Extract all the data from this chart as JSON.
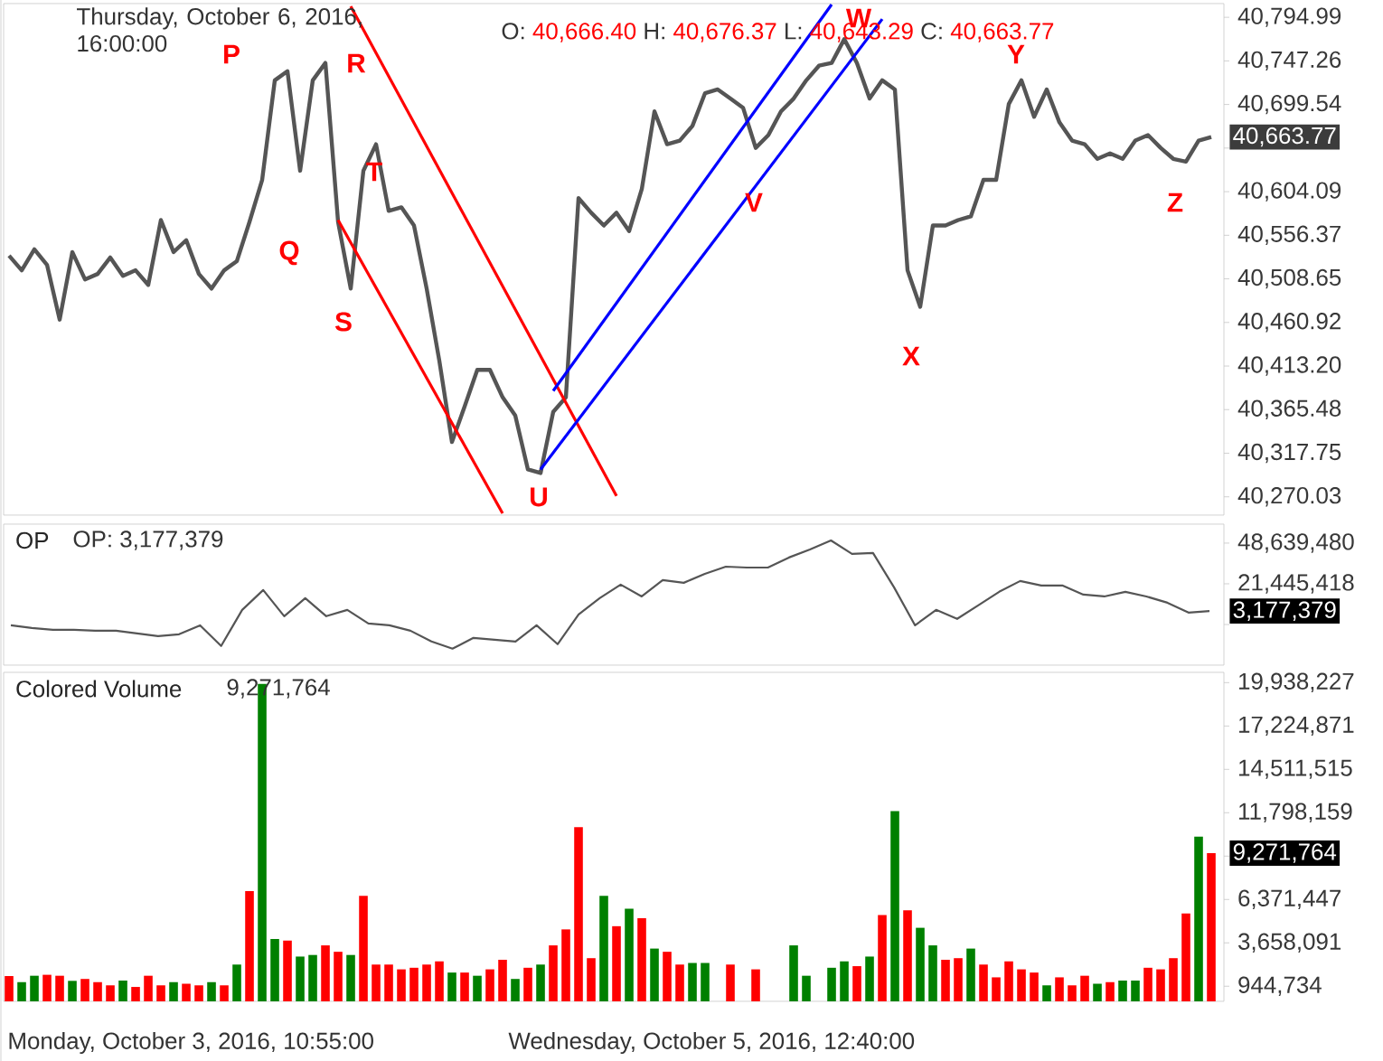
{
  "chart_data": [
    {
      "type": "line",
      "categories": [
        null,
        null,
        null,
        null,
        null,
        null,
        null,
        null,
        null,
        null,
        null,
        null,
        null,
        null,
        null,
        null,
        null,
        null,
        null,
        null,
        null,
        null,
        null,
        null,
        null,
        null,
        null,
        null,
        null,
        null,
        null,
        null,
        null,
        null,
        null,
        null,
        null,
        null,
        null,
        null,
        null,
        null,
        null,
        null,
        null,
        null,
        null,
        null,
        null,
        null,
        null,
        null,
        null,
        null,
        null,
        null,
        null,
        null,
        null,
        null,
        null,
        null,
        null,
        null,
        null,
        null,
        null,
        null,
        null,
        null,
        null,
        null,
        null,
        null,
        null,
        null,
        null,
        null,
        null,
        null,
        null,
        null,
        null,
        null,
        null,
        null,
        null,
        null,
        null,
        null,
        null,
        null,
        null,
        null,
        null,
        null
      ],
      "series": [
        {
          "color": "#555555",
          "values": [
            40534,
            40518,
            40541,
            40524,
            40464,
            40538,
            40508,
            40514,
            40532,
            40512,
            40518,
            40502,
            40573,
            40538,
            40551,
            40514,
            40498,
            40518,
            40528,
            40571,
            40617,
            40726,
            40736,
            40627,
            40726,
            40745,
            40571,
            40498,
            40627,
            40656,
            40583,
            40587,
            40567,
            40498,
            40419,
            40330,
            40369,
            40409,
            40409,
            40379,
            40359,
            40300,
            40296,
            40363,
            40379,
            40597,
            40581,
            40567,
            40581,
            40561,
            40607,
            40692,
            40656,
            40660,
            40676,
            40712,
            40716,
            40706,
            40696,
            40652,
            40666,
            40692,
            40706,
            40726,
            40742,
            40745,
            40771,
            40745,
            40706,
            40726,
            40716,
            40518,
            40478,
            40567,
            40567,
            40573,
            40577,
            40617,
            40617,
            40700,
            40726,
            40686,
            40716,
            40680,
            40660,
            40656,
            40640,
            40646,
            40640,
            40660,
            40666,
            40652,
            40640,
            40637,
            40660,
            40664
          ]
        },
        {
          "type": "line",
          "color": "#ff0000",
          "values": [
            null,
            null,
            null,
            null,
            null,
            null,
            null,
            null,
            null,
            null,
            null,
            null,
            null,
            null,
            null,
            null,
            null,
            null,
            null,
            null,
            null,
            null,
            null,
            null,
            null,
            null,
            null,
            40807,
            null,
            null,
            null,
            null,
            null,
            null,
            null,
            null,
            null,
            null,
            null,
            null,
            null,
            null,
            null,
            null,
            null,
            null,
            null,
            null,
            40271,
            null,
            null,
            null,
            null,
            null,
            null,
            null,
            null,
            null,
            null,
            null,
            null,
            null,
            null,
            null,
            null,
            null,
            null,
            null,
            null,
            null,
            null,
            null,
            null,
            null,
            null,
            null,
            null,
            null,
            null,
            null,
            null,
            null,
            null,
            null,
            null,
            null,
            null,
            null,
            null,
            null,
            null,
            null,
            null,
            null,
            null,
            null
          ]
        },
        {
          "type": "line",
          "color": "#ff0000",
          "values": [
            null,
            null,
            null,
            null,
            null,
            null,
            null,
            null,
            null,
            null,
            null,
            null,
            null,
            null,
            null,
            null,
            null,
            null,
            null,
            null,
            null,
            null,
            null,
            null,
            null,
            null,
            40573,
            null,
            null,
            null,
            null,
            null,
            null,
            null,
            null,
            null,
            null,
            null,
            null,
            40252,
            null,
            null,
            null,
            null,
            null,
            null,
            null,
            null,
            null,
            null,
            null,
            null,
            null,
            null,
            null,
            null,
            null,
            null,
            null,
            null,
            null,
            null,
            null,
            null,
            null,
            null,
            null,
            null,
            null,
            null,
            null,
            null,
            null,
            null,
            null,
            null,
            null,
            null,
            null,
            null,
            null,
            null,
            null,
            null,
            null,
            null,
            null,
            null,
            null,
            null,
            null,
            null,
            null,
            null,
            null,
            null
          ]
        },
        {
          "type": "line",
          "color": "#0000ff",
          "values": [
            null,
            null,
            null,
            null,
            null,
            null,
            null,
            null,
            null,
            null,
            null,
            null,
            null,
            null,
            null,
            null,
            null,
            null,
            null,
            null,
            null,
            null,
            null,
            null,
            null,
            null,
            null,
            null,
            null,
            null,
            null,
            null,
            null,
            null,
            null,
            null,
            null,
            null,
            null,
            null,
            null,
            null,
            null,
            40386,
            null,
            null,
            null,
            null,
            null,
            null,
            null,
            null,
            null,
            null,
            null,
            null,
            null,
            null,
            null,
            null,
            null,
            null,
            null,
            null,
            null,
            40809,
            null,
            null,
            null,
            null,
            null,
            null,
            null,
            null,
            null,
            null,
            null,
            null,
            null,
            null,
            null,
            null,
            null,
            null,
            null,
            null,
            null,
            null,
            null,
            null,
            null,
            null,
            null,
            null,
            null,
            null
          ]
        },
        {
          "type": "line",
          "color": "#0000ff",
          "values": [
            null,
            null,
            null,
            null,
            null,
            null,
            null,
            null,
            null,
            null,
            null,
            null,
            null,
            null,
            null,
            null,
            null,
            null,
            null,
            null,
            null,
            null,
            null,
            null,
            null,
            null,
            null,
            null,
            null,
            null,
            null,
            null,
            null,
            null,
            null,
            null,
            null,
            null,
            null,
            null,
            null,
            null,
            40300,
            null,
            null,
            null,
            null,
            null,
            null,
            null,
            null,
            null,
            null,
            null,
            null,
            null,
            null,
            null,
            null,
            null,
            null,
            null,
            null,
            null,
            null,
            null,
            null,
            null,
            null,
            40793,
            null,
            null,
            null,
            null,
            null,
            null,
            null,
            null,
            null,
            null,
            null,
            null,
            null,
            null,
            null,
            null,
            null,
            null,
            null,
            null,
            null,
            null,
            null,
            null,
            null,
            null
          ]
        }
      ],
      "ylim": [
        40250,
        40810
      ],
      "yticks": [
        {
          "value": 40794.99,
          "label": "40,794.99"
        },
        {
          "value": 40747.26,
          "label": "40,747.26"
        },
        {
          "value": 40699.54,
          "label": "40,699.54"
        },
        {
          "value": 40651.82,
          "label": null
        },
        {
          "value": 40604.09,
          "label": "40,604.09"
        },
        {
          "value": 40556.37,
          "label": "40,556.37"
        },
        {
          "value": 40508.65,
          "label": "40,508.65"
        },
        {
          "value": 40460.92,
          "label": "40,460.92"
        },
        {
          "value": 40413.2,
          "label": "40,413.20"
        },
        {
          "value": 40365.48,
          "label": "40,365.48"
        },
        {
          "value": 40317.75,
          "label": "40,317.75"
        },
        {
          "value": 40270.03,
          "label": "40,270.03"
        }
      ],
      "annotations": [
        "Thursday, October 6, 2016, 16:00:00",
        "O:",
        "40,666.40",
        "H:",
        "40,676.37",
        "L:",
        "40,643.29",
        "C:",
        "40,663.77",
        "40,663.77",
        "P",
        "Q",
        "R",
        "S",
        "T",
        "U",
        "V",
        "W",
        "X",
        "Y",
        "Z"
      ]
    },
    {
      "type": "line",
      "title": "OP",
      "categories": [
        null,
        null,
        null,
        null,
        null,
        null,
        null,
        null,
        null,
        null,
        null,
        null,
        null,
        null,
        null,
        null,
        null,
        null,
        null,
        null,
        null,
        null,
        null,
        null,
        null,
        null,
        null,
        null,
        null,
        null,
        null,
        null,
        null,
        null,
        null,
        null,
        null,
        null,
        null,
        null,
        null,
        null,
        null,
        null,
        null,
        null,
        null,
        null,
        null,
        null,
        null,
        null,
        null,
        null,
        null,
        null,
        null,
        null
      ],
      "series": [
        {
          "color": "#555555",
          "values": [
            -6300000,
            -8100000,
            -9300000,
            -9300000,
            -9900000,
            -9900000,
            -11700000,
            -13500000,
            -12300000,
            -6300000,
            -20100000,
            4000000,
            17300000,
            -200000,
            11800000,
            -200000,
            4000000,
            -5100000,
            -6300000,
            -9900000,
            -17100000,
            -21900000,
            -14700000,
            -15900000,
            -17100000,
            -6300000,
            -18900000,
            1000000,
            11800000,
            20900000,
            13000000,
            23900000,
            22100000,
            28100000,
            32900000,
            32300000,
            32300000,
            39000000,
            44400000,
            50400000,
            41400000,
            42000000,
            19100000,
            -6300000,
            4000000,
            -2000000,
            7000000,
            16100000,
            23300000,
            20300000,
            20300000,
            14200000,
            13000000,
            16100000,
            13000000,
            8800000,
            2200000,
            3177379
          ]
        }
      ],
      "ylim": [
        -32900000,
        61300000
      ],
      "yticks": [
        {
          "value": 48639480,
          "label": "48,639,480"
        },
        {
          "value": 21445418,
          "label": "21,445,418"
        },
        {
          "value": -5748644,
          "label": null
        }
      ],
      "annotations": [
        "OP: 3,177,379",
        "3,177,379"
      ]
    },
    {
      "type": "bar",
      "title": "Colored Volume",
      "categories": [
        null,
        null,
        null,
        null,
        null,
        null,
        null,
        null,
        null,
        null,
        null,
        null,
        null,
        null,
        null,
        null,
        null,
        null,
        null,
        null,
        null,
        null,
        null,
        null,
        null,
        null,
        null,
        null,
        null,
        null,
        null,
        null,
        null,
        null,
        null,
        null,
        null,
        null,
        null,
        null,
        null,
        null,
        null,
        null,
        null,
        null,
        null,
        null,
        null,
        null,
        null,
        null,
        null,
        null,
        null,
        null,
        null,
        null,
        null,
        null,
        null,
        null,
        null,
        null,
        null,
        null,
        null,
        null,
        null,
        null,
        null,
        null,
        null,
        null,
        null,
        null,
        null,
        null,
        null,
        null,
        null,
        null,
        null,
        null,
        null,
        null,
        null,
        null,
        null,
        null,
        null,
        null,
        null,
        null,
        null,
        null
      ],
      "values": [
        1580000,
        1200000,
        1600000,
        1660000,
        1600000,
        1280000,
        1400000,
        1200000,
        1000000,
        1300000,
        900000,
        1600000,
        1000000,
        1200000,
        1100000,
        1000000,
        1200000,
        1000000,
        2300000,
        6900000,
        19860000,
        3900000,
        3800000,
        2800000,
        2900000,
        3500000,
        3100000,
        2900000,
        6600000,
        2300000,
        2300000,
        2000000,
        2100000,
        2300000,
        2500000,
        1800000,
        1800000,
        1600000,
        2000000,
        2600000,
        1400000,
        2100000,
        2300000,
        3500000,
        4500000,
        10900000,
        2700000,
        6600000,
        4700000,
        5800000,
        5200000,
        3300000,
        3100000,
        2300000,
        2400000,
        2400000,
        null,
        2300000,
        null,
        2000000,
        null,
        null,
        3500000,
        1600000,
        null,
        2100000,
        2500000,
        2200000,
        2800000,
        5400000,
        11900000,
        5700000,
        4600000,
        3500000,
        2600000,
        2700000,
        3300000,
        2300000,
        1500000,
        2500000,
        2000000,
        1800000,
        1000000,
        1500000,
        1000000,
        1600000,
        1100000,
        1200000,
        1300000,
        1300000,
        2100000,
        2000000,
        2700000,
        5500000,
        10300000,
        9270000
      ],
      "colors": [
        "#ff0000",
        "#008000",
        "#008000",
        "#ff0000",
        "#ff0000",
        "#008000",
        "#ff0000",
        "#ff0000",
        "#ff0000",
        "#008000",
        "#ff0000",
        "#ff0000",
        "#ff0000",
        "#008000",
        "#ff0000",
        "#ff0000",
        "#008000",
        "#ff0000",
        "#008000",
        "#ff0000",
        "#008000",
        "#008000",
        "#ff0000",
        "#008000",
        "#008000",
        "#ff0000",
        "#ff0000",
        "#008000",
        "#ff0000",
        "#ff0000",
        "#ff0000",
        "#ff0000",
        "#ff0000",
        "#ff0000",
        "#ff0000",
        "#008000",
        "#ff0000",
        "#008000",
        "#ff0000",
        "#ff0000",
        "#008000",
        "#ff0000",
        "#008000",
        "#ff0000",
        "#ff0000",
        "#ff0000",
        "#ff0000",
        "#008000",
        "#ff0000",
        "#008000",
        "#ff0000",
        "#008000",
        "#ff0000",
        "#ff0000",
        "#008000",
        "#008000",
        null,
        "#ff0000",
        null,
        "#ff0000",
        null,
        null,
        "#008000",
        "#008000",
        null,
        "#008000",
        "#008000",
        "#ff0000",
        "#008000",
        "#ff0000",
        "#008000",
        "#ff0000",
        "#008000",
        "#008000",
        "#ff0000",
        "#ff0000",
        "#008000",
        "#ff0000",
        "#ff0000",
        "#ff0000",
        "#ff0000",
        "#ff0000",
        "#008000",
        "#ff0000",
        "#ff0000",
        "#ff0000",
        "#008000",
        "#ff0000",
        "#008000",
        "#008000",
        "#ff0000",
        "#ff0000",
        "#ff0000",
        "#ff0000",
        "#008000",
        "#ff0000"
      ],
      "ylim": [
        0,
        20580000
      ],
      "yticks": [
        {
          "value": 19938227,
          "label": "19,938,227"
        },
        {
          "value": 17224871,
          "label": "17,224,871"
        },
        {
          "value": 14511515,
          "label": "14,511,515"
        },
        {
          "value": 11798159,
          "label": "11,798,159"
        },
        {
          "value": 9084803,
          "label": null
        },
        {
          "value": 6371447,
          "label": "6,371,447"
        },
        {
          "value": 3658091,
          "label": "3,658,091"
        },
        {
          "value": 944734,
          "label": "944,734"
        }
      ],
      "annotations": [
        "9,271,764",
        "9,271,764",
        "Monday, October 3, 2016, 10:55:00",
        "Wednesday, October 5, 2016, 12:40:00"
      ]
    }
  ]
}
